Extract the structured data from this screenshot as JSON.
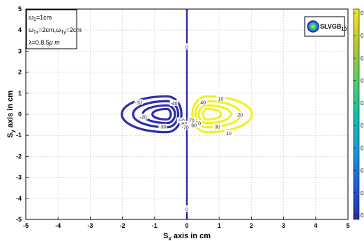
{
  "chart_data": {
    "type": "contour",
    "xlabel_main": "S",
    "xlabel_sub": "x",
    "xlabel_rest": " axis in cm",
    "ylabel_main": "S",
    "ylabel_sub": "y",
    "ylabel_rest": " axis in cm",
    "xlim": [
      -5,
      5
    ],
    "ylim": [
      -5,
      5
    ],
    "xticks": [
      -5,
      -4,
      -3,
      -2,
      -1,
      0,
      1,
      2,
      3,
      4,
      5
    ],
    "yticks": [
      -5,
      -4,
      -3,
      -2,
      -1,
      0,
      1,
      2,
      3,
      4,
      5
    ],
    "grid": true,
    "legend": {
      "position": "top-right",
      "label_main": "SLVGB",
      "label_sub": "10"
    },
    "annotation": {
      "line1": {
        "main": "ω",
        "sub": "1",
        "rest": "=1cm"
      },
      "line2": {
        "main": "ω",
        "sub": "1x",
        "mid": "=2cm,ω",
        "sub2": "1y",
        "rest": "=2cm"
      },
      "line3": {
        "main": "λ=0.8.5",
        "mu": "μ",
        "rest": " m"
      }
    },
    "vertical_zero_contour": {
      "x": 0,
      "label": "0",
      "label_y": [
        3.2,
        -4.5
      ]
    },
    "lobes": [
      {
        "name": "negative",
        "color": "#2e2ea8",
        "center": [
          -0.62,
          0.0
        ],
        "rings": [
          {
            "level": -10,
            "rx": 1.85,
            "ry": 1.75,
            "left_dx": -1.4,
            "right_dx": 0.45,
            "top_dy": 0.85,
            "bottom_dy": -0.85
          },
          {
            "level": -20,
            "rx": 1.4,
            "ry": 1.35,
            "left_dx": -1.05,
            "right_dx": 0.35,
            "top_dy": 0.62,
            "bottom_dy": -0.62
          },
          {
            "level": -30,
            "rx": 0.95,
            "ry": 0.9,
            "left_dx": -0.75,
            "right_dx": 0.25,
            "top_dy": 0.42,
            "bottom_dy": -0.42
          },
          {
            "level": -40,
            "rx": 0.55,
            "ry": 0.5,
            "left_dx": -0.45,
            "right_dx": 0.12,
            "top_dy": 0.25,
            "bottom_dy": -0.25
          }
        ],
        "labels": [
          {
            "text": "-10",
            "x": -1.5,
            "y": 0.55
          },
          {
            "text": "-20",
            "x": -1.35,
            "y": -0.15
          },
          {
            "text": "-30",
            "x": -0.75,
            "y": -0.62
          },
          {
            "text": "-40",
            "x": -0.4,
            "y": 0.5
          },
          {
            "text": "-50",
            "x": -0.18,
            "y": -0.32
          },
          {
            "text": "-60",
            "x": -0.1,
            "y": -0.48
          },
          {
            "text": "-70",
            "x": -0.05,
            "y": -0.64
          }
        ]
      },
      {
        "name": "positive",
        "color": "#f0f028",
        "center": [
          0.62,
          0.0
        ],
        "rings": [
          {
            "level": 10,
            "left_dx": -0.45,
            "right_dx": 1.4,
            "top_dy": 0.85,
            "bottom_dy": -0.85
          },
          {
            "level": 20,
            "left_dx": -0.35,
            "right_dx": 1.05,
            "top_dy": 0.62,
            "bottom_dy": -0.62
          },
          {
            "level": 30,
            "left_dx": -0.25,
            "right_dx": 0.75,
            "top_dy": 0.42,
            "bottom_dy": -0.42
          },
          {
            "level": 40,
            "left_dx": -0.12,
            "right_dx": 0.45,
            "top_dy": 0.25,
            "bottom_dy": -0.25
          }
        ],
        "labels": [
          {
            "text": "10",
            "x": 1.05,
            "y": 0.72
          },
          {
            "text": "20",
            "x": 1.65,
            "y": -0.05
          },
          {
            "text": "30",
            "x": 0.95,
            "y": -0.62
          },
          {
            "text": "40",
            "x": 0.5,
            "y": 0.55
          },
          {
            "text": "50",
            "x": 0.35,
            "y": -0.45
          },
          {
            "text": "60",
            "x": 0.22,
            "y": -0.55
          },
          {
            "text": "70",
            "x": 0.15,
            "y": -0.32
          },
          {
            "text": "10",
            "x": 1.3,
            "y": -0.92
          }
        ]
      }
    ],
    "colorbar": {
      "colors": [
        "#2a2a9e",
        "#1f5fd6",
        "#1a9ad8",
        "#15bfa8",
        "#5ccb63",
        "#b8c43a",
        "#f4e526"
      ],
      "tick_labels": [
        "0",
        "0",
        "0",
        "0",
        "0",
        "0",
        "0",
        "0",
        "0",
        "0"
      ]
    }
  }
}
